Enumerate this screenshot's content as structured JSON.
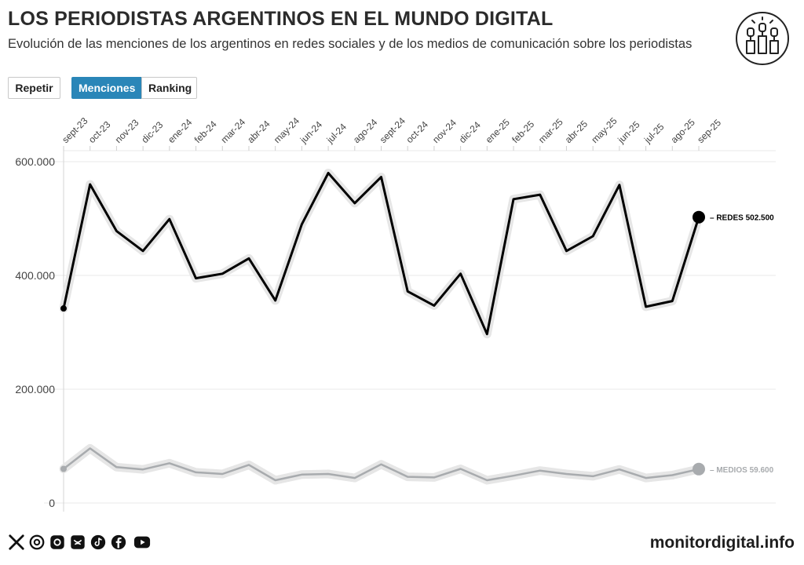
{
  "header": {
    "title": "LOS PERIODISTAS ARGENTINOS EN EL MUNDO DIGITAL",
    "subtitle": "Evolución de las menciones de los argentinos en redes sociales y de los medios de comunicación sobre los periodistas"
  },
  "controls": {
    "repeat_label": "Repetir",
    "mentions_label": "Menciones",
    "ranking_label": "Ranking"
  },
  "footer": {
    "brand": "monitordigital.info",
    "social_icons": [
      "x-icon",
      "threads-icon",
      "instagram-icon",
      "bluesky-icon",
      "tiktok-icon",
      "facebook-icon",
      "youtube-icon"
    ]
  },
  "colors": {
    "redes": "#000000",
    "medios": "#a8abae",
    "halo": "#e6e6e6",
    "accent": "#2a86b8",
    "grid": "#e9e9e9"
  },
  "chart_data": {
    "type": "line",
    "title": "LOS PERIODISTAS ARGENTINOS EN EL MUNDO DIGITAL",
    "xlabel": "",
    "ylabel": "",
    "categories": [
      "sept-23",
      "oct-23",
      "nov-23",
      "dic-23",
      "ene-24",
      "feb-24",
      "mar-24",
      "abr-24",
      "may-24",
      "jun-24",
      "jul-24",
      "ago-24",
      "sept-24",
      "oct-24",
      "nov-24",
      "dic-24",
      "ene-25",
      "feb-25",
      "mar-25",
      "abr-25",
      "may-25",
      "jun-25",
      "jul-25",
      "ago-25",
      "sep-25"
    ],
    "ylim": [
      0,
      600000
    ],
    "yticks": [
      0,
      200000,
      400000,
      600000
    ],
    "ytick_labels": [
      "0",
      "200.000",
      "400.000",
      "600.000"
    ],
    "grid": true,
    "series": [
      {
        "name": "REDES",
        "label": "REDES 502.500",
        "values": [
          342000,
          560000,
          478000,
          443000,
          499000,
          395000,
          403000,
          430000,
          356000,
          490000,
          580000,
          527000,
          573000,
          372000,
          347000,
          403000,
          297000,
          534000,
          542000,
          443000,
          469000,
          559000,
          345000,
          355000,
          502500
        ]
      },
      {
        "name": "MEDIOS",
        "label": "MEDIOS 59.600",
        "values": [
          60000,
          96000,
          63000,
          59000,
          70000,
          54000,
          51000,
          67000,
          40000,
          50000,
          51000,
          44000,
          68000,
          46000,
          45000,
          60000,
          40000,
          48000,
          57000,
          51000,
          47000,
          59000,
          44000,
          49000,
          59600
        ]
      }
    ]
  }
}
